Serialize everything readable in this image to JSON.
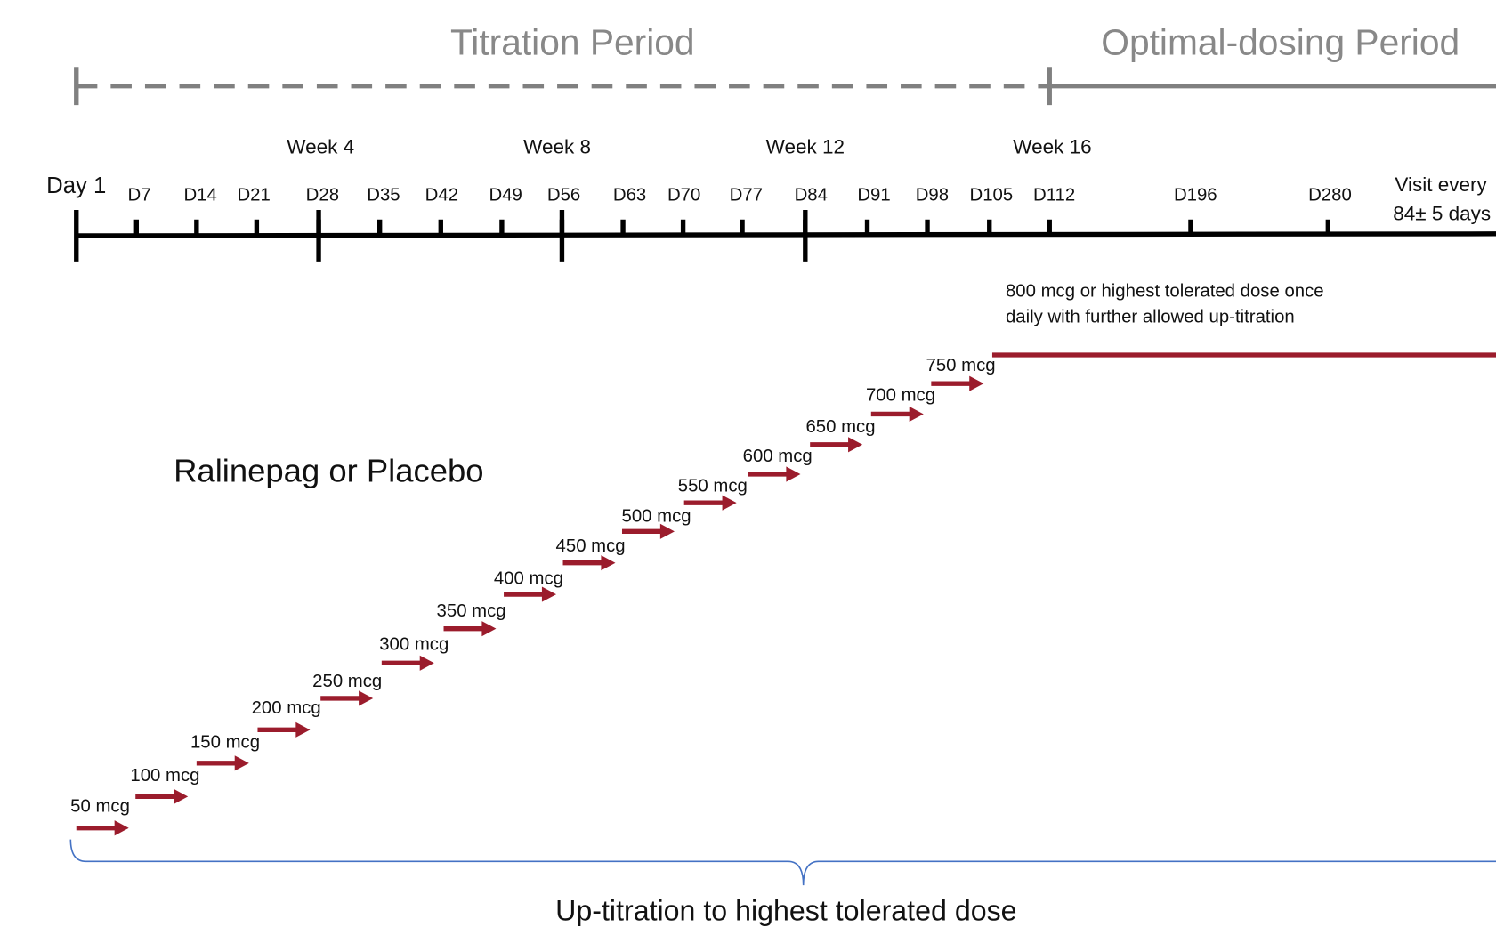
{
  "header": {
    "titration_period": "Titration Period",
    "optimal_period": "Optimal-dosing Period"
  },
  "timeline": {
    "weeks": [
      "Week 4",
      "Week 8",
      "Week 12",
      "Week 16"
    ],
    "start": "Day 1",
    "days": [
      "D7",
      "D14",
      "D21",
      "D28",
      "D35",
      "D42",
      "D49",
      "D56",
      "D63",
      "D70",
      "D77",
      "D84",
      "D91",
      "D98",
      "D105",
      "D112",
      "D196",
      "D280"
    ],
    "visit_note": [
      "Visit every",
      "84± 5 days"
    ]
  },
  "optimal_note": [
    "800 mcg or highest tolerated dose once",
    "daily with further allowed up-titration"
  ],
  "treatment": "Ralinepag or Placebo",
  "doses": [
    "50 mcg",
    "100 mcg",
    "150 mcg",
    "200 mcg",
    "250 mcg",
    "300 mcg",
    "350 mcg",
    "400 mcg",
    "450 mcg",
    "500 mcg",
    "550 mcg",
    "600 mcg",
    "650 mcg",
    "700 mcg",
    "750 mcg"
  ],
  "brace_label": "Up-titration to highest tolerated dose"
}
